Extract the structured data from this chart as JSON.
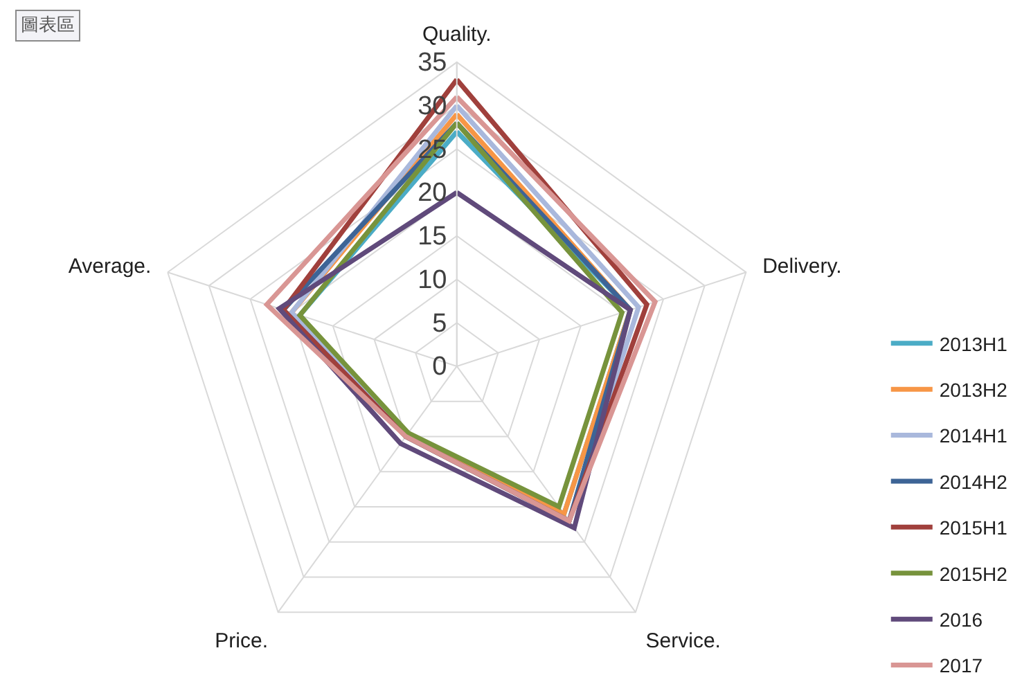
{
  "chart_data": {
    "type": "radar",
    "categories": [
      "Quality.",
      "Delivery.",
      "Service.",
      "Price.",
      "Average."
    ],
    "ylim": [
      0,
      35
    ],
    "yticks": [
      0,
      5,
      10,
      15,
      20,
      25,
      30,
      35
    ],
    "grid": true,
    "legend": "right",
    "annotations": [
      "圖表區"
    ],
    "series": [
      {
        "name": "2013H1",
        "color": "#4bacc6",
        "values": [
          27,
          21,
          21,
          10,
          19
        ]
      },
      {
        "name": "2013H2",
        "color": "#f79646",
        "values": [
          29,
          21,
          21,
          10,
          20
        ]
      },
      {
        "name": "2014H1",
        "color": "#a9b8dc",
        "values": [
          30,
          22,
          22,
          10,
          20
        ]
      },
      {
        "name": "2014H2",
        "color": "#3d6496",
        "values": [
          28,
          21,
          22,
          10,
          21
        ]
      },
      {
        "name": "2015H1",
        "color": "#a0403c",
        "values": [
          33,
          23,
          22,
          10,
          21
        ]
      },
      {
        "name": "2015H2",
        "color": "#77933c",
        "values": [
          28,
          20,
          20,
          9.5,
          19
        ]
      },
      {
        "name": "2016",
        "color": "#604a7b",
        "values": [
          20,
          21,
          23,
          11,
          21.5
        ]
      },
      {
        "name": "2017",
        "color": "#d99694",
        "values": [
          31,
          24,
          22,
          10,
          23
        ]
      }
    ]
  }
}
